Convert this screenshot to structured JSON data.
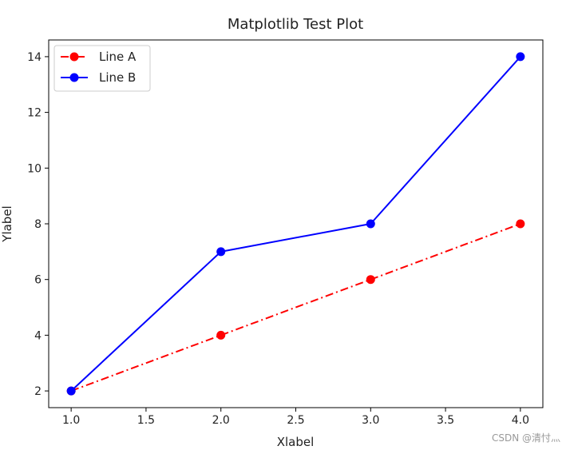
{
  "chart_data": {
    "type": "line",
    "title": "Matplotlib Test Plot",
    "xlabel": "Xlabel",
    "ylabel": "Ylabel",
    "x": [
      1.0,
      2.0,
      3.0,
      4.0
    ],
    "xticks": [
      1.0,
      1.5,
      2.0,
      2.5,
      3.0,
      3.5,
      4.0
    ],
    "xtick_labels": [
      "1.0",
      "1.5",
      "2.0",
      "2.5",
      "3.0",
      "3.5",
      "4.0"
    ],
    "yticks": [
      2,
      4,
      6,
      8,
      10,
      12,
      14
    ],
    "ytick_labels": [
      "2",
      "4",
      "6",
      "8",
      "10",
      "12",
      "14"
    ],
    "xlim": [
      0.85,
      4.15
    ],
    "ylim": [
      1.4,
      14.6
    ],
    "grid": false,
    "legend_position": "top-left",
    "series": [
      {
        "name": "Line A",
        "values": [
          2,
          4,
          6,
          8
        ],
        "color": "#ff0000",
        "linestyle": "dashdot",
        "marker": "circle"
      },
      {
        "name": "Line B",
        "values": [
          2,
          7,
          8,
          14
        ],
        "color": "#0000ff",
        "linestyle": "solid",
        "marker": "circle"
      }
    ]
  },
  "watermark": "CSDN @清忖灬"
}
